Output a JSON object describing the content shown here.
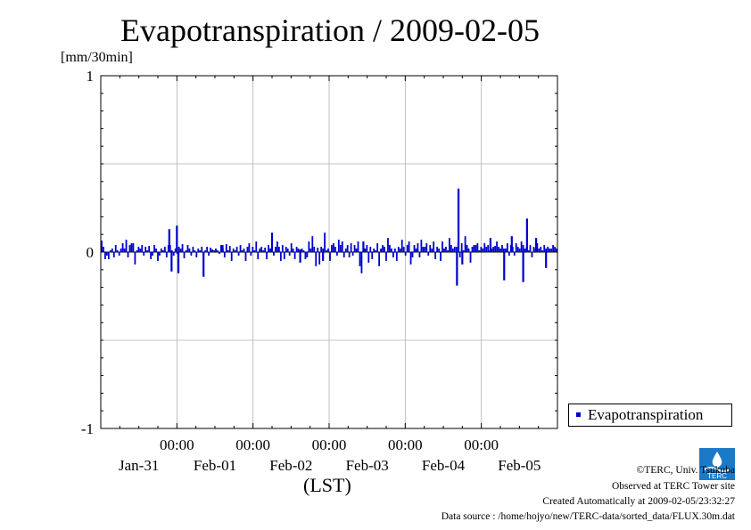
{
  "title": "Evapotranspiration / 2009-02-05",
  "unit": "[mm/30min]",
  "x_axis_title": "(LST)",
  "legend": "Evapotranspiration",
  "credits": {
    "copyright": "©TERC, Univ. Tsukuba",
    "observed": "Observed at TERC Tower site",
    "created": "Created Automatically at 2009-02-05/23:32:27",
    "source": "Data source : /home/hojyo/new/TERC-data/sorted_data/FLUX.30m.dat"
  },
  "logo_text": "TERC",
  "colors": {
    "series": "#0000cc",
    "grid": "#b0b0b0",
    "axis": "#000000"
  },
  "chart_data": {
    "type": "bar",
    "title": "Evapotranspiration / 2009-02-05",
    "ylabel": "[mm/30min]",
    "xlabel": "(LST)",
    "ylim": [
      -1,
      1
    ],
    "yticks": [
      1,
      0,
      -1
    ],
    "x_range_days": [
      0,
      6
    ],
    "x_tick_time_labels": [
      "00:00",
      "00:00",
      "00:00",
      "00:00",
      "00:00"
    ],
    "x_tick_date_labels": [
      "Jan-31",
      "Feb-01",
      "Feb-02",
      "Feb-03",
      "Feb-04",
      "Feb-05"
    ],
    "grid": true,
    "legend_position": "bottom-right outside",
    "series": [
      {
        "name": "Evapotranspiration",
        "interval": "30min",
        "values": [
          0.065,
          0.03,
          -0.04,
          -0.02,
          -0.04,
          0.01,
          0.02,
          -0.03,
          0.04,
          0.01,
          -0.02,
          0.02,
          0.05,
          0.02,
          0.07,
          -0.03,
          0.04,
          0.05,
          0.05,
          -0.07,
          0.01,
          0.03,
          0.02,
          0.04,
          -0.02,
          0.03,
          0.01,
          0.035,
          -0.04,
          -0.02,
          0.04,
          0.02,
          -0.05,
          -0.02,
          0.02,
          0.01,
          0.03,
          -0.03,
          0.04,
          0.04,
          0.01,
          -0.02,
          0.02,
          -0.01,
          0.03,
          0.02,
          0.045,
          -0.035,
          0.01,
          0.04,
          0.02,
          -0.02,
          0.03,
          0.01,
          -0.03,
          0.02,
          0.01,
          0.03,
          -0.02,
          0.01,
          0.03,
          -0.02,
          0.025,
          0.015,
          0.01,
          0.02,
          0.01,
          -0.01,
          0.04,
          0.02,
          -0.03,
          0.045,
          0.01,
          0.035,
          -0.05,
          0.02,
          0.01,
          0.03,
          -0.02,
          0.04,
          0.01,
          0.02,
          -0.05,
          0.03,
          0.05,
          -0.02,
          0.03,
          0.01,
          0.06,
          -0.04,
          0.02,
          0.03,
          0.01,
          0.025,
          -0.04,
          0.04,
          0.02,
          0.01,
          -0.02,
          0.03,
          0.06,
          0.03,
          -0.05,
          0.04,
          -0.04,
          0.03,
          0.02,
          -0.02,
          0.05,
          0.02,
          -0.04,
          0.03,
          0.02,
          0.015,
          0.02,
          0.01,
          -0.04,
          -0.03,
          0.06,
          0.02,
          0.09,
          0.03,
          -0.08,
          0.025,
          -0.07,
          0.03,
          0.02,
          0.11,
          0.01,
          0.02,
          -0.05,
          0.04,
          0.05,
          0.03,
          -0.02,
          0.07,
          0.04,
          0.06,
          -0.03,
          0.02,
          0.04,
          -0.03,
          0.05,
          -0.02,
          0.04,
          0.02,
          0.06,
          -0.08,
          -0.12,
          0.03,
          0.02,
          0.04,
          -0.06,
          0.03,
          -0.04,
          0.02,
          0.01,
          0.05,
          -0.08,
          0.02,
          0.04,
          0.03,
          -0.05,
          0.08,
          0.04,
          0.02,
          -0.03,
          0.02,
          -0.05,
          0.03,
          0.02,
          0.07,
          0.03,
          -0.02,
          0.04,
          0.06,
          -0.07,
          -0.03,
          0.04,
          0.02,
          0.05,
          -0.03,
          0.07,
          0.03,
          0.03,
          0.05,
          -0.02,
          0.04,
          0.02,
          0.06,
          -0.04,
          0.03,
          0.02,
          -0.05,
          0.06,
          0.02,
          0.03,
          0.01,
          0.08,
          0.04,
          0.02,
          0.03,
          0.03,
          0.06,
          -0.03,
          0.05,
          0.01,
          0.09,
          0.04,
          0.02,
          -0.06,
          0.03,
          0.04,
          0.04,
          0.05,
          0.01,
          0.03,
          0.02,
          0.05,
          0.03,
          0.04,
          0.01,
          0.02,
          0.03,
          0.035,
          0.06,
          0.03,
          0.02,
          0.04,
          0.02,
          0.02,
          0.05,
          -0.02,
          0.04,
          0.03,
          -0.02,
          0.05,
          0.03,
          0.02,
          0.06,
          0.04,
          0.02,
          0.03,
          0.01,
          0.04,
          -0.03,
          0.03,
          0.02,
          0.05,
          0.02,
          0.03,
          0.01,
          0.04,
          0.02,
          0.03,
          0.02,
          0.02,
          0.04,
          0.03,
          0.02
        ],
        "highlights": [
          {
            "day": 0.9,
            "value": 0.13
          },
          {
            "day": 0.93,
            "value": -0.11
          },
          {
            "day": 1.0,
            "value": 0.15
          },
          {
            "day": 1.02,
            "value": -0.12
          },
          {
            "day": 1.35,
            "value": -0.14
          },
          {
            "day": 1.6,
            "value": 0.04
          },
          {
            "day": 2.25,
            "value": 0.11
          },
          {
            "day": 2.62,
            "value": -0.06
          },
          {
            "day": 2.92,
            "value": -0.05
          },
          {
            "day": 3.45,
            "value": 0.06
          },
          {
            "day": 4.7,
            "value": 0.36
          },
          {
            "day": 4.68,
            "value": -0.19
          },
          {
            "day": 4.75,
            "value": -0.07
          },
          {
            "day": 5.12,
            "value": 0.08
          },
          {
            "day": 5.3,
            "value": -0.16
          },
          {
            "day": 5.4,
            "value": 0.09
          },
          {
            "day": 5.55,
            "value": -0.17
          },
          {
            "day": 5.6,
            "value": 0.19
          },
          {
            "day": 5.72,
            "value": 0.08
          },
          {
            "day": 5.85,
            "value": -0.09
          }
        ]
      }
    ]
  }
}
